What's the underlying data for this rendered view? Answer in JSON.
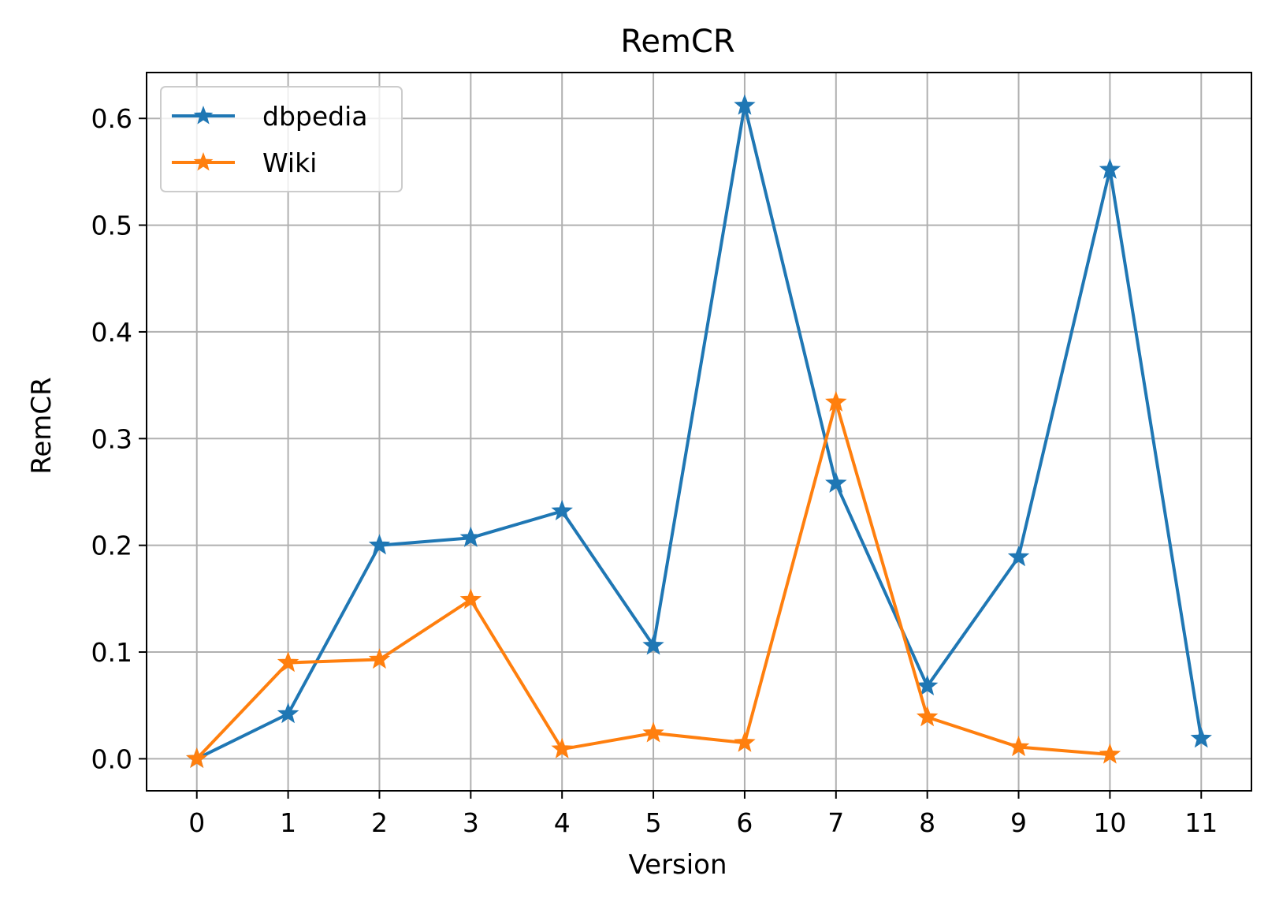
{
  "chart_data": {
    "type": "line",
    "title": "RemCR",
    "xlabel": "Version",
    "ylabel": "RemCR",
    "x": [
      0,
      1,
      2,
      3,
      4,
      5,
      6,
      7,
      8,
      9,
      10,
      11
    ],
    "xlim": [
      -0.55,
      11.55
    ],
    "ylim": [
      -0.03,
      0.643
    ],
    "yticks": [
      0.0,
      0.1,
      0.2,
      0.3,
      0.4,
      0.5,
      0.6
    ],
    "ytick_labels": [
      "0.0",
      "0.1",
      "0.2",
      "0.3",
      "0.4",
      "0.5",
      "0.6"
    ],
    "xtick_labels": [
      "0",
      "1",
      "2",
      "3",
      "4",
      "5",
      "6",
      "7",
      "8",
      "9",
      "10",
      "11"
    ],
    "grid": true,
    "legend_position": "top-left",
    "marker": "star",
    "series": [
      {
        "name": "dbpedia",
        "color": "#1f77b4",
        "x": [
          0,
          1,
          2,
          3,
          4,
          5,
          6,
          7,
          8,
          9,
          10,
          11
        ],
        "values": [
          0.0,
          0.042,
          0.2,
          0.207,
          0.232,
          0.106,
          0.612,
          0.258,
          0.068,
          0.189,
          0.552,
          0.019
        ]
      },
      {
        "name": "Wiki",
        "color": "#ff7f0e",
        "x": [
          0,
          1,
          2,
          3,
          4,
          5,
          6,
          7,
          8,
          9,
          10
        ],
        "values": [
          0.0,
          0.09,
          0.093,
          0.149,
          0.009,
          0.024,
          0.015,
          0.334,
          0.039,
          0.011,
          0.004
        ]
      }
    ]
  }
}
